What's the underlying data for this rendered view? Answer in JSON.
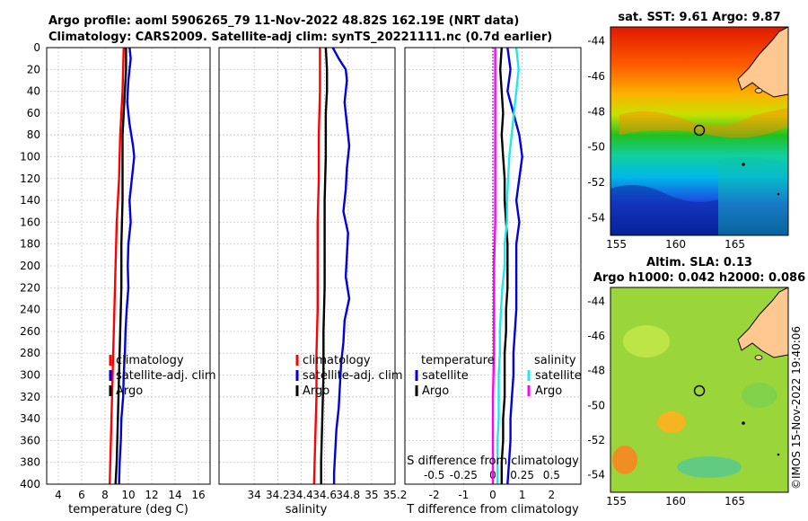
{
  "header": {
    "title_line1": "Argo profile: aoml 5906265_79 11-Nov-2022 48.82S 162.19E (NRT data)",
    "title_line2": "Climatology: CARS2009. Satellite-adj clim: synTS_20221111.nc (0.7d earlier)"
  },
  "colors": {
    "climatology": "#ff0000",
    "satellite": "#0000dd",
    "argo": "#000000",
    "sal_sat": "#22e8e8",
    "sal_argo": "#ff00ff"
  },
  "chart_data": [
    {
      "type": "line",
      "id": "temperature",
      "xlabel": "temperature (deg C)",
      "ylabel": "",
      "xlim": [
        3,
        17
      ],
      "ylim": [
        400,
        0
      ],
      "xticks": [
        "4",
        "6",
        "8",
        "10",
        "12",
        "14",
        "16"
      ],
      "yticks": [
        "0",
        "20",
        "40",
        "60",
        "80",
        "100",
        "120",
        "140",
        "160",
        "180",
        "200",
        "220",
        "240",
        "260",
        "280",
        "300",
        "320",
        "340",
        "360",
        "380",
        "400"
      ],
      "legend": [
        "climatology",
        "satellite-adj. clim",
        "Argo"
      ],
      "series": [
        {
          "name": "climatology",
          "depth": [
            0,
            40,
            80,
            120,
            160,
            200,
            240,
            280,
            320,
            360,
            400
          ],
          "values": [
            9.6,
            9.5,
            9.3,
            9.2,
            9.0,
            8.9,
            8.8,
            8.7,
            8.6,
            8.5,
            8.4
          ]
        },
        {
          "name": "satellite-adj. clim",
          "depth": [
            0,
            10,
            30,
            50,
            70,
            90,
            100,
            120,
            140,
            160,
            180,
            200,
            220,
            240,
            260,
            280,
            300,
            320,
            340,
            360,
            380,
            400
          ],
          "values": [
            10.1,
            10.2,
            10.0,
            9.9,
            10.1,
            10.4,
            10.5,
            10.3,
            10.1,
            10.2,
            10.0,
            9.95,
            10.0,
            9.85,
            9.75,
            9.7,
            9.6,
            9.55,
            9.4,
            9.35,
            9.25,
            9.2
          ]
        },
        {
          "name": "Argo",
          "depth": [
            0,
            20,
            40,
            60,
            80,
            100,
            140,
            180,
            220,
            260,
            300,
            340,
            380,
            400
          ],
          "values": [
            9.8,
            9.8,
            9.7,
            9.6,
            9.5,
            9.5,
            9.5,
            9.4,
            9.4,
            9.3,
            9.2,
            9.1,
            9.0,
            8.9
          ]
        }
      ]
    },
    {
      "type": "line",
      "id": "salinity",
      "xlabel": "salinity",
      "xlim": [
        33.7,
        35.2
      ],
      "ylim": [
        400,
        0
      ],
      "xticks": [
        "34",
        "34.2",
        "34.4",
        "34.6",
        "34.8",
        "35",
        "35.2"
      ],
      "legend": [
        "climatology",
        "satellite-adj. clim",
        "Argo"
      ],
      "series": [
        {
          "name": "climatology",
          "depth": [
            0,
            40,
            80,
            120,
            160,
            200,
            240,
            280,
            320,
            360,
            400
          ],
          "values": [
            34.56,
            34.56,
            34.55,
            34.55,
            34.54,
            34.54,
            34.54,
            34.53,
            34.53,
            34.52,
            34.51
          ]
        },
        {
          "name": "satellite-adj. clim",
          "depth": [
            0,
            10,
            20,
            30,
            50,
            70,
            90,
            110,
            130,
            150,
            170,
            190,
            210,
            230,
            250,
            270,
            290,
            310,
            330,
            350,
            370,
            390,
            400
          ],
          "values": [
            34.67,
            34.72,
            34.78,
            34.79,
            34.77,
            34.79,
            34.81,
            34.79,
            34.78,
            34.76,
            34.8,
            34.79,
            34.78,
            34.81,
            34.77,
            34.76,
            34.74,
            34.73,
            34.72,
            34.7,
            34.69,
            34.68,
            34.68
          ]
        },
        {
          "name": "Argo",
          "depth": [
            0,
            20,
            40,
            60,
            80,
            100,
            140,
            180,
            220,
            260,
            300,
            340,
            380,
            400
          ],
          "values": [
            34.61,
            34.62,
            34.62,
            34.61,
            34.61,
            34.61,
            34.6,
            34.6,
            34.6,
            34.59,
            34.59,
            34.58,
            34.57,
            34.57
          ]
        }
      ]
    },
    {
      "type": "line",
      "id": "difference",
      "xlabel": "T difference from climatology",
      "xlabel_top": "S difference from climatology",
      "xlim": [
        -3,
        3
      ],
      "xlim_salinity": [
        -0.75,
        0.75
      ],
      "ylim": [
        400,
        0
      ],
      "xticks": [
        "-2",
        "-1",
        "0",
        "1",
        "2"
      ],
      "xticks_top": [
        "-0.5",
        "-0.25",
        "0",
        "0.25",
        "0.5"
      ],
      "legend_left_title": "temperature",
      "legend_right_title": "salinity",
      "legend_left": [
        "satellite",
        "Argo"
      ],
      "legend_right": [
        "satellite",
        "Argo"
      ],
      "series": [
        {
          "name": "T satellite",
          "depth": [
            0,
            20,
            40,
            60,
            80,
            100,
            120,
            140,
            160,
            180,
            200,
            220,
            240,
            260,
            280,
            300,
            320,
            340,
            360,
            380,
            400
          ],
          "values": [
            0.5,
            0.6,
            0.5,
            0.7,
            0.9,
            1.0,
            0.9,
            0.8,
            0.9,
            0.8,
            0.8,
            0.8,
            0.8,
            0.75,
            0.7,
            0.7,
            0.65,
            0.6,
            0.6,
            0.55,
            0.5
          ]
        },
        {
          "name": "T Argo",
          "depth": [
            0,
            20,
            40,
            60,
            80,
            100,
            120,
            140,
            160,
            180,
            200,
            220,
            240,
            260,
            280,
            300,
            320,
            340,
            360,
            380,
            400
          ],
          "values": [
            0.3,
            0.25,
            0.3,
            0.35,
            0.3,
            0.35,
            0.4,
            0.4,
            0.45,
            0.5,
            0.5,
            0.5,
            0.45,
            0.45,
            0.4,
            0.4,
            0.4,
            0.35,
            0.35,
            0.3,
            0.3
          ]
        },
        {
          "name": "S satellite",
          "depth": [
            0,
            20,
            40,
            60,
            80,
            100,
            120,
            140,
            160,
            180,
            200,
            220,
            240,
            260,
            280,
            300,
            320,
            340,
            360,
            380,
            400
          ],
          "values": [
            0.2,
            0.22,
            0.2,
            0.18,
            0.16,
            0.14,
            0.13,
            0.12,
            0.12,
            0.1,
            0.1,
            0.08,
            0.07,
            0.06,
            0.06,
            0.05,
            0.05,
            0.05,
            0.04,
            0.04,
            0.04
          ]
        },
        {
          "name": "S Argo",
          "depth": [
            0,
            40,
            80,
            120,
            160,
            200,
            240,
            280,
            320,
            360,
            400
          ],
          "values": [
            0.02,
            0.02,
            0.02,
            0.02,
            0.02,
            0.01,
            0.01,
            0.01,
            0.0,
            0.0,
            0.0
          ]
        }
      ]
    },
    {
      "type": "heatmap",
      "id": "sst_map",
      "title": "sat. SST: 9.61 Argo: 9.87",
      "xticks": [
        "155",
        "160",
        "165"
      ],
      "yticks": [
        "-44",
        "-46",
        "-48",
        "-50",
        "-52",
        "-54"
      ],
      "argo_position": {
        "lon": 162.19,
        "lat": -48.82
      }
    },
    {
      "type": "heatmap",
      "id": "sla_map",
      "title_line1": "Altim. SLA: 0.13",
      "title_line2": "Argo h1000: 0.042 h2000: 0.086",
      "xticks": [
        "155",
        "160",
        "165"
      ],
      "yticks": [
        "-44",
        "-46",
        "-48",
        "-50",
        "-52",
        "-54"
      ],
      "argo_position": {
        "lon": 162.19,
        "lat": -48.82
      }
    }
  ],
  "watermark": "©IMOS 15-Nov-2022 19:40:06"
}
